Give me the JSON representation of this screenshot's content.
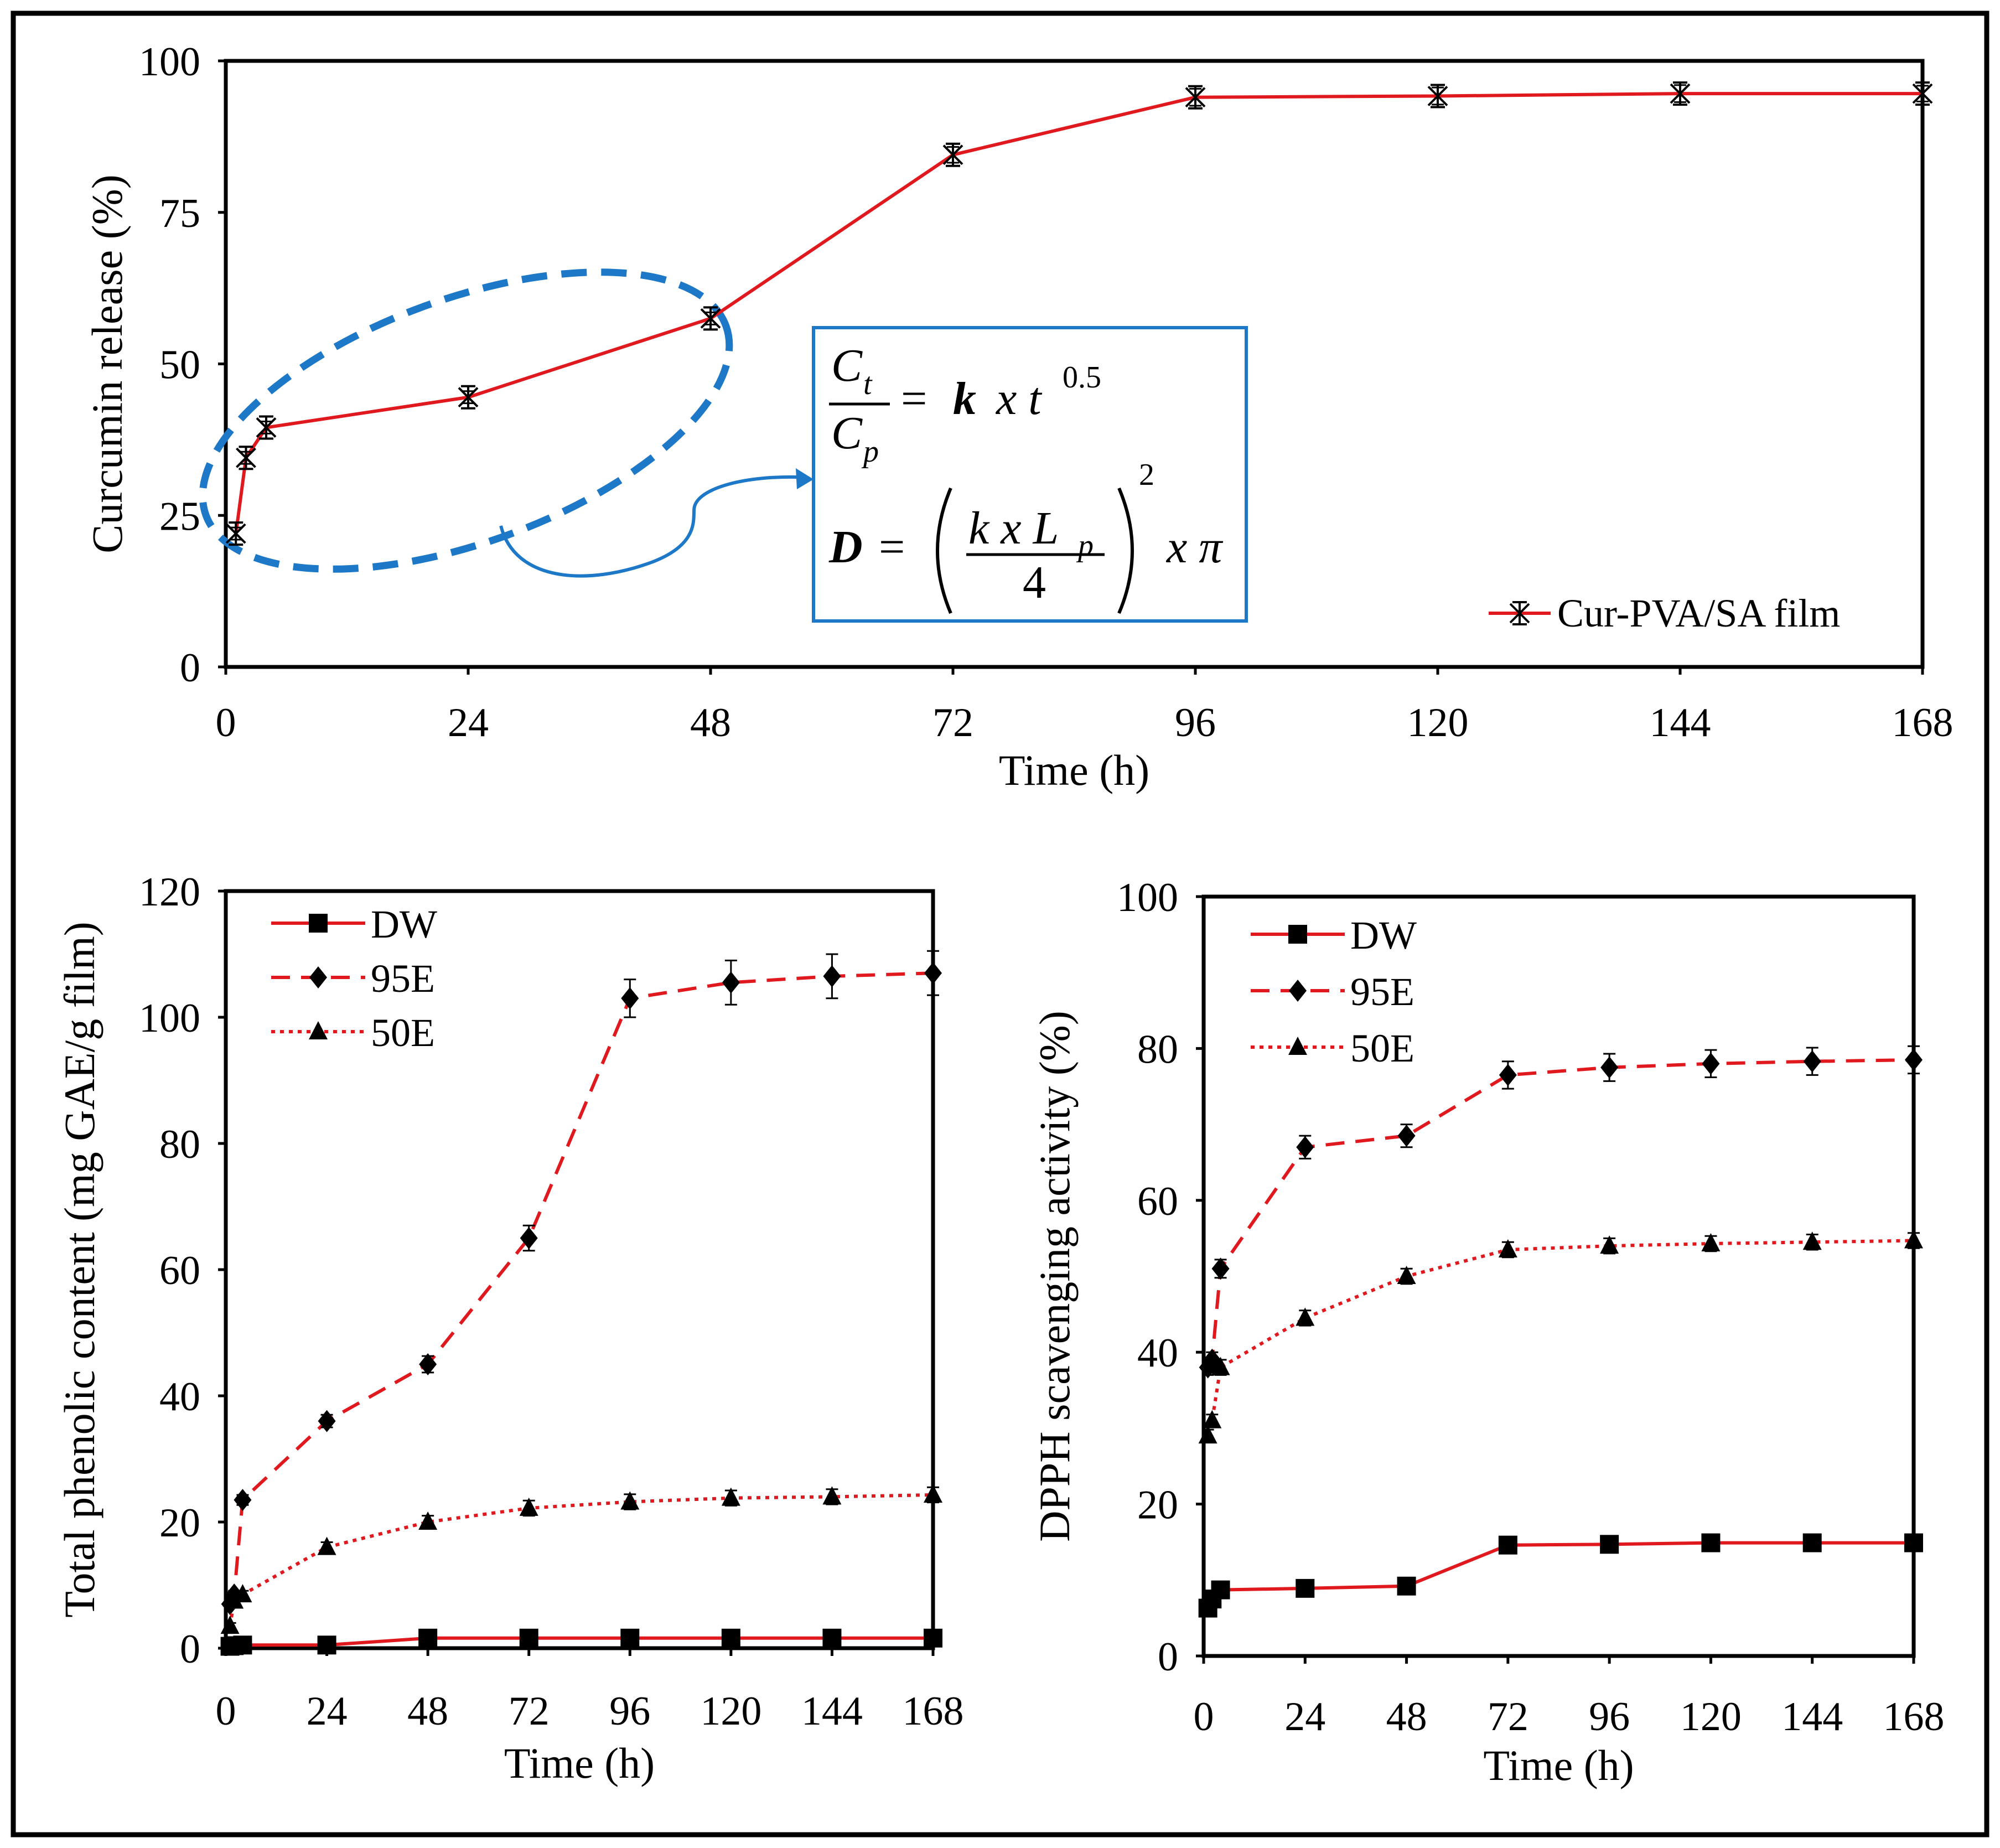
{
  "colors": {
    "series_red": "#e0191f",
    "axis": "#000000",
    "annotation_blue": "#1e78c8"
  },
  "chart_data": [
    {
      "type": "line",
      "xlabel": "Time (h)",
      "ylabel": "Curcumin release (%)",
      "xlim": [
        0,
        168
      ],
      "ylim": [
        0,
        100
      ],
      "xticks": [
        "0",
        "24",
        "48",
        "72",
        "96",
        "120",
        "144",
        "168"
      ],
      "yticks": [
        "0",
        "25",
        "50",
        "75",
        "100"
      ],
      "legend_position": "bottom-right",
      "series": [
        {
          "name": "Cur-PVA/SA film",
          "marker": "asterisk",
          "line": "solid",
          "x": [
            1,
            2,
            4,
            24,
            48,
            72,
            96,
            120,
            144,
            168
          ],
          "y": [
            22,
            34.5,
            39.5,
            44.5,
            57.5,
            84.5,
            94,
            94.2,
            94.6,
            94.6
          ],
          "err": [
            1,
            1,
            1,
            1,
            1,
            1.3,
            1.4,
            1.4,
            1.4,
            1.3
          ]
        }
      ],
      "annotation": {
        "eq1_num": "C",
        "eq1_num_sub": "t",
        "eq1_den": "C",
        "eq1_den_sub": "p",
        "eq1_rhs_eq": "=",
        "eq1_rhs_k": "k",
        "eq1_rhs_x": "x t",
        "eq1_rhs_exp": "0.5",
        "eq2_lhs": "D",
        "eq2_eq": "=",
        "eq2_num": "k x L",
        "eq2_num_sub": "p",
        "eq2_den": "4",
        "eq2_exp": "2",
        "eq2_tail": "x π"
      }
    },
    {
      "type": "line",
      "xlabel": "Time (h)",
      "ylabel": "Total phenolic content (mg GAE/g film)",
      "xlim": [
        0,
        168
      ],
      "ylim": [
        0,
        120
      ],
      "xticks": [
        "0",
        "24",
        "48",
        "72",
        "96",
        "120",
        "144",
        "168"
      ],
      "yticks": [
        "0",
        "20",
        "40",
        "60",
        "80",
        "100",
        "120"
      ],
      "legend_position": "top-left",
      "series": [
        {
          "name": "DW",
          "marker": "square",
          "line": "solid",
          "x": [
            1,
            2,
            4,
            24,
            48,
            72,
            96,
            120,
            144,
            168
          ],
          "y": [
            0.3,
            0.4,
            0.5,
            0.5,
            1.6,
            1.6,
            1.6,
            1.6,
            1.6,
            1.6
          ],
          "err": [
            0,
            0,
            0,
            0,
            0,
            0,
            0,
            0,
            0,
            0
          ]
        },
        {
          "name": "95E",
          "marker": "diamond",
          "line": "dashed",
          "x": [
            1,
            2,
            4,
            24,
            48,
            72,
            96,
            120,
            144,
            168
          ],
          "y": [
            7,
            8.5,
            23.5,
            36,
            45,
            65,
            103,
            105.5,
            106.5,
            107
          ],
          "err": [
            0.6,
            0.6,
            0.8,
            1,
            1.3,
            2,
            3,
            3.5,
            3.5,
            3.5
          ]
        },
        {
          "name": "50E",
          "marker": "triangle",
          "line": "dotted",
          "x": [
            1,
            2,
            4,
            24,
            48,
            72,
            96,
            120,
            144,
            168
          ],
          "y": [
            3.5,
            7.5,
            8.5,
            16,
            20,
            22.2,
            23.2,
            23.8,
            24,
            24.3
          ],
          "err": [
            0.5,
            0.6,
            0.6,
            0.8,
            1,
            1.2,
            1.2,
            1.2,
            1.2,
            1.2
          ]
        }
      ]
    },
    {
      "type": "line",
      "xlabel": "Time (h)",
      "ylabel": "DPPH scavenging activity (%)",
      "xlim": [
        0,
        168
      ],
      "ylim": [
        0,
        100
      ],
      "xticks": [
        "0",
        "24",
        "48",
        "72",
        "96",
        "120",
        "144",
        "168"
      ],
      "yticks": [
        "0",
        "20",
        "40",
        "60",
        "80",
        "100"
      ],
      "legend_position": "top-left",
      "series": [
        {
          "name": "DW",
          "marker": "square",
          "line": "solid",
          "x": [
            1,
            2,
            4,
            24,
            48,
            72,
            96,
            120,
            144,
            168
          ],
          "y": [
            6.3,
            7.5,
            8.7,
            8.9,
            9.2,
            14.6,
            14.7,
            14.9,
            14.9,
            14.9
          ],
          "err": [
            0,
            0,
            0,
            0,
            0,
            0,
            0,
            0,
            0,
            0
          ]
        },
        {
          "name": "95E",
          "marker": "diamond",
          "line": "dashed",
          "x": [
            1,
            2,
            4,
            24,
            48,
            72,
            96,
            120,
            144,
            168
          ],
          "y": [
            38,
            39,
            51,
            67,
            68.5,
            76.5,
            77.5,
            78,
            78.3,
            78.5
          ],
          "err": [
            1,
            1,
            1.2,
            1.5,
            1.5,
            1.8,
            1.8,
            1.8,
            1.8,
            1.8
          ]
        },
        {
          "name": "50E",
          "marker": "triangle",
          "line": "dotted",
          "x": [
            1,
            2,
            4,
            24,
            48,
            72,
            96,
            120,
            144,
            168
          ],
          "y": [
            29,
            31,
            38,
            44.5,
            50,
            53.5,
            54,
            54.3,
            54.5,
            54.7
          ],
          "err": [
            0.8,
            0.8,
            1,
            1,
            1,
            1,
            1,
            1,
            1,
            1
          ]
        }
      ]
    }
  ]
}
